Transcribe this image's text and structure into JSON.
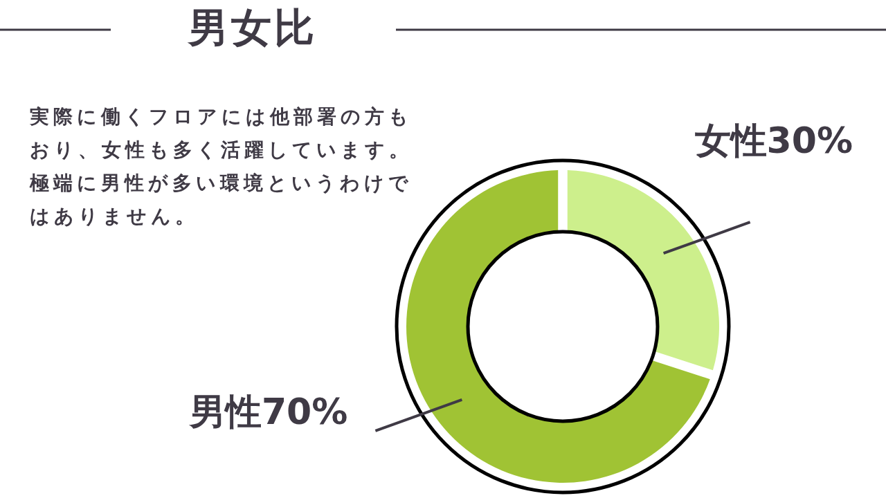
{
  "chart_data": {
    "type": "donut",
    "title": "男女比",
    "annotations": [
      "実際に働くフロアには他部署の方もおり、女性も多く活躍しています。極端に男性が多い環境というわけではありません。"
    ],
    "categories": [
      "女性",
      "男性"
    ],
    "values": [
      30,
      70
    ],
    "value_labels": [
      "30%",
      "70%"
    ],
    "colors": [
      "#cdef8c",
      "#a0c334"
    ],
    "legend": false
  }
}
